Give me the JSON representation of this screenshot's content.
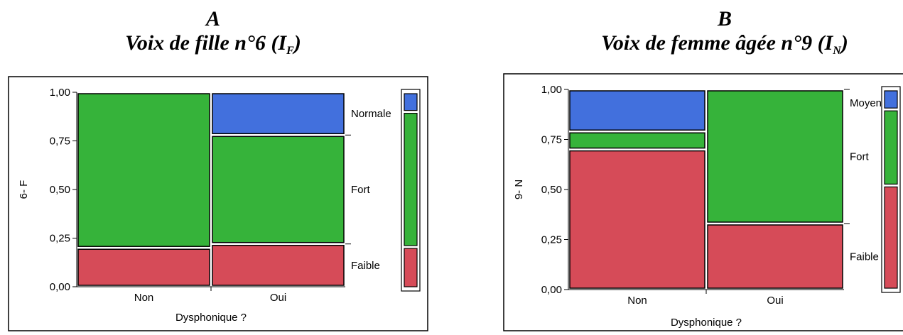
{
  "charts": [
    {
      "letter": "A",
      "title_main": "Voix de fille n°6 (I",
      "title_sub": "F",
      "title_end": ")",
      "ylabel": "6- F",
      "xlabel": "Dysphonique ?",
      "yticks": [
        "1,00",
        "0,75",
        "0,50",
        "0,25",
        "0,00"
      ]
    },
    {
      "letter": "B",
      "title_main": "Voix de femme âgée n°9 (I",
      "title_sub": "N",
      "title_end": ")",
      "ylabel": "9- N",
      "xlabel": "Dysphonique ?",
      "yticks": [
        "1,00",
        "0,75",
        "0,50",
        "0,25",
        "0,00"
      ]
    }
  ],
  "chart_data": [
    {
      "type": "mosaic",
      "xlabel": "Dysphonique ?",
      "ylabel": "6- F",
      "ylim": [
        0,
        1
      ],
      "categories": [
        "Non",
        "Oui"
      ],
      "column_widths": [
        0.5,
        0.5
      ],
      "series": [
        {
          "name": "Faible",
          "color": "#d64b58",
          "values": [
            0.2,
            0.22
          ]
        },
        {
          "name": "Fort",
          "color": "#36b33a",
          "values": [
            0.8,
            0.56
          ]
        },
        {
          "name": "Normale",
          "color": "#4270dd",
          "values": [
            0.0,
            0.22
          ]
        }
      ],
      "legend_shares": [
        0.21,
        0.69,
        0.1
      ]
    },
    {
      "type": "mosaic",
      "xlabel": "Dysphonique ?",
      "ylabel": "9- N",
      "ylim": [
        0,
        1
      ],
      "categories": [
        "Non",
        "Oui"
      ],
      "column_widths": [
        0.5,
        0.5
      ],
      "series": [
        {
          "name": "Faible",
          "color": "#d64b58",
          "values": [
            0.7,
            0.33
          ]
        },
        {
          "name": "Fort",
          "color": "#36b33a",
          "values": [
            0.09,
            0.67
          ]
        },
        {
          "name": "Moyen",
          "color": "#4270dd",
          "values": [
            0.21,
            0.0
          ]
        }
      ],
      "legend_shares": [
        0.52,
        0.38,
        0.1
      ]
    }
  ]
}
